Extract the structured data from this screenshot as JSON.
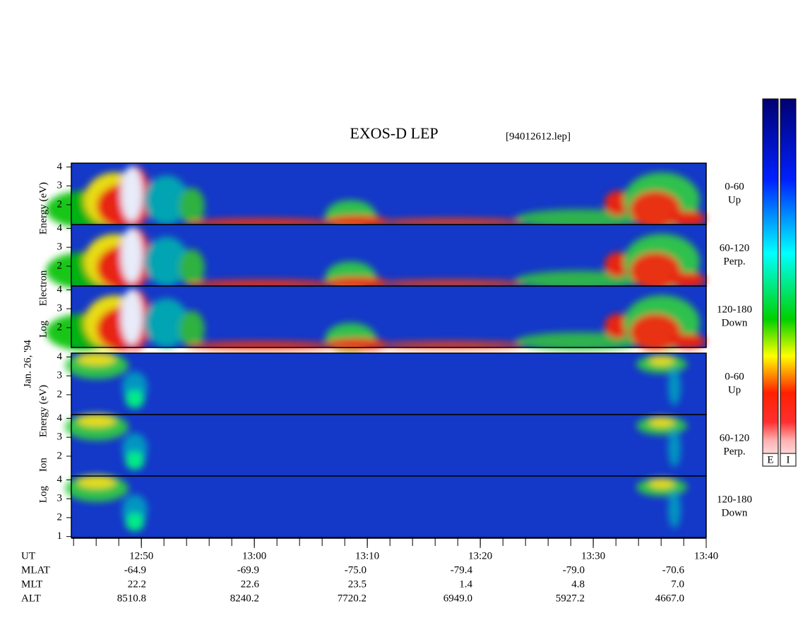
{
  "header": {
    "title": "EXOS-D LEP",
    "file": "[94012612.lep]"
  },
  "date": "Jan. 26, '94",
  "groups": [
    {
      "axis_label": [
        "Log",
        "Electron",
        "Energy (eV)"
      ],
      "panels": [
        {
          "angle": "0-60",
          "direction": "Up",
          "yticks": [
            4,
            3,
            2
          ]
        },
        {
          "angle": "60-120",
          "direction": "Perp.",
          "yticks": [
            4,
            3,
            2
          ]
        },
        {
          "angle": "120-180",
          "direction": "Down",
          "yticks": [
            4,
            3,
            2
          ]
        }
      ]
    },
    {
      "axis_label": [
        "Log",
        "Ion",
        "Energy (eV)"
      ],
      "panels": [
        {
          "angle": "0-60",
          "direction": "Up",
          "yticks": [
            4,
            3,
            2
          ]
        },
        {
          "angle": "60-120",
          "direction": "Perp.",
          "yticks": [
            4,
            3,
            2
          ]
        },
        {
          "angle": "120-180",
          "direction": "Down",
          "yticks": [
            4,
            3,
            2,
            1
          ]
        }
      ]
    }
  ],
  "ylim": [
    0.95,
    4.2
  ],
  "time_axis": {
    "xlim": [
      763.8,
      820
    ],
    "xticks": [
      {
        "value": 770,
        "label": "12:50"
      },
      {
        "value": 780,
        "label": "13:00"
      },
      {
        "value": 790,
        "label": "13:10"
      },
      {
        "value": 800,
        "label": "13:20"
      },
      {
        "value": 810,
        "label": "13:30"
      },
      {
        "value": 820,
        "label": "13:40"
      }
    ]
  },
  "ephemeris": [
    {
      "label": "UT"
    },
    {
      "label": "MLAT",
      "values": [
        "-64.9",
        "-69.9",
        "-75.0",
        "-79.4",
        "-79.0",
        "-70.6"
      ]
    },
    {
      "label": "MLT",
      "values": [
        "22.2",
        "22.6",
        "23.5",
        "1.4",
        "4.8",
        "7.0"
      ]
    },
    {
      "label": "ALT",
      "values": [
        "8510.8",
        "8240.2",
        "7720.2",
        "6949.0",
        "5927.2",
        "4667.0"
      ]
    }
  ],
  "colorbars": [
    "E",
    "I"
  ]
}
